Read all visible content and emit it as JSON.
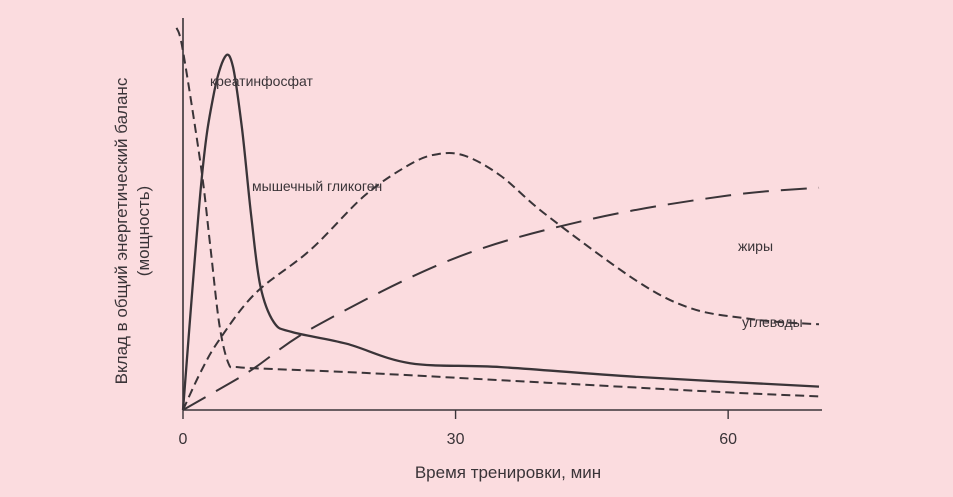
{
  "chart_data": {
    "type": "line",
    "xlabel": "Время тренировки, мин",
    "ylabel_line1": "Вклад в общий энергетический баланс",
    "ylabel_line2": "(мощность)",
    "xlim": [
      0,
      70
    ],
    "ylim": [
      0,
      1
    ],
    "x_ticks": [
      0,
      30,
      60
    ],
    "grid": false,
    "series": [
      {
        "name": "креатинфосфат",
        "style": "dashed",
        "points": [
          [
            -0.7,
            0.98
          ],
          [
            0,
            0.92
          ],
          [
            2,
            0.62
          ],
          [
            3,
            0.42
          ],
          [
            4,
            0.22
          ],
          [
            5,
            0.12
          ],
          [
            6,
            0.11
          ],
          [
            10,
            0.105
          ],
          [
            20,
            0.095
          ],
          [
            40,
            0.07
          ],
          [
            60,
            0.045
          ],
          [
            70,
            0.035
          ]
        ]
      },
      {
        "name": "мышечный гликоген",
        "style": "solid",
        "points": [
          [
            0,
            0.0
          ],
          [
            2,
            0.58
          ],
          [
            3.3,
            0.8
          ],
          [
            4.6,
            0.905
          ],
          [
            5.5,
            0.88
          ],
          [
            6.5,
            0.72
          ],
          [
            7.5,
            0.5
          ],
          [
            8.5,
            0.32
          ],
          [
            10,
            0.225
          ],
          [
            12,
            0.2
          ],
          [
            18,
            0.17
          ],
          [
            25,
            0.12
          ],
          [
            35,
            0.11
          ],
          [
            50,
            0.085
          ],
          [
            70,
            0.06
          ]
        ]
      },
      {
        "name": "углеводы",
        "style": "dashed",
        "points": [
          [
            0,
            0.0
          ],
          [
            2,
            0.1
          ],
          [
            4,
            0.18
          ],
          [
            8,
            0.3
          ],
          [
            14,
            0.41
          ],
          [
            20,
            0.55
          ],
          [
            25,
            0.63
          ],
          [
            28,
            0.656
          ],
          [
            31,
            0.652
          ],
          [
            35,
            0.6
          ],
          [
            40,
            0.5
          ],
          [
            50,
            0.33
          ],
          [
            56,
            0.26
          ],
          [
            62,
            0.235
          ],
          [
            66,
            0.225
          ],
          [
            70,
            0.22
          ]
        ]
      },
      {
        "name": "жиры",
        "style": "longdash",
        "points": [
          [
            0,
            0.0
          ],
          [
            6,
            0.08
          ],
          [
            8,
            0.11
          ],
          [
            15,
            0.22
          ],
          [
            30,
            0.39
          ],
          [
            45,
            0.49
          ],
          [
            60,
            0.55
          ],
          [
            70,
            0.57
          ]
        ]
      }
    ],
    "annotations": [
      {
        "series": "креатинфосфат",
        "text": "креатинфосфат"
      },
      {
        "series": "мышечный гликоген",
        "text": "мышечный гликоген"
      },
      {
        "series": "жиры",
        "text": "жиры"
      },
      {
        "series": "углеводы",
        "text": "углеводы"
      }
    ],
    "colors": {
      "background": "#fbdcdf",
      "ink": "#3a3438"
    }
  }
}
